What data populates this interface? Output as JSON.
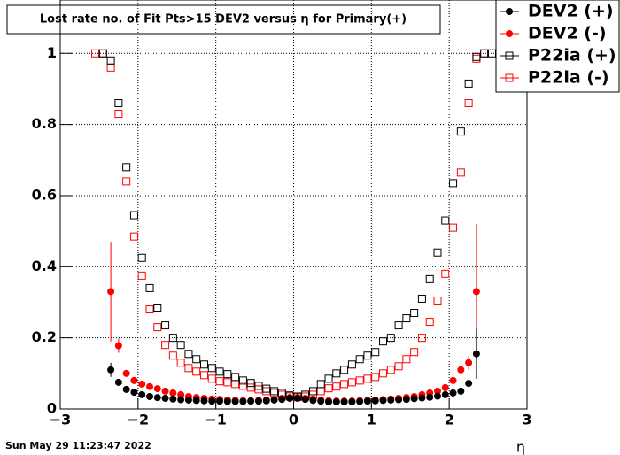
{
  "chart_data": {
    "type": "scatter",
    "title": "Lost rate no. of Fit Pts>15 DEV2 versus η for Primary(+)",
    "x_label": "η",
    "timestamp": "Sun May 29 11:23:47 2022",
    "xlim": [
      -3,
      3
    ],
    "ylim": [
      0,
      1.15
    ],
    "xticks": [
      {
        "value": -3,
        "label": "−3"
      },
      {
        "value": -2,
        "label": "−2"
      },
      {
        "value": -1,
        "label": "−1"
      },
      0,
      1,
      2,
      3
    ],
    "yticks": [
      0,
      0.2,
      0.4,
      0.6,
      0.8,
      1
    ],
    "grid": true,
    "legend": "top-right",
    "series": [
      {
        "name": "DEV2 (+)",
        "color": "#000000",
        "marker": "filled-circle",
        "x": [
          -2.35,
          -2.25,
          -2.15,
          -2.05,
          -1.95,
          -1.85,
          -1.75,
          -1.65,
          -1.55,
          -1.45,
          -1.35,
          -1.25,
          -1.15,
          -1.05,
          -0.95,
          -0.85,
          -0.75,
          -0.65,
          -0.55,
          -0.45,
          -0.35,
          -0.25,
          -0.15,
          -0.05,
          0.05,
          0.15,
          0.25,
          0.35,
          0.45,
          0.55,
          0.65,
          0.75,
          0.85,
          0.95,
          1.05,
          1.15,
          1.25,
          1.35,
          1.45,
          1.55,
          1.65,
          1.75,
          1.85,
          1.95,
          2.05,
          2.15,
          2.25,
          2.35
        ],
        "values": [
          0.11,
          0.075,
          0.055,
          0.047,
          0.04,
          0.035,
          0.032,
          0.03,
          0.028,
          0.026,
          0.025,
          0.024,
          0.023,
          0.022,
          0.022,
          0.021,
          0.021,
          0.021,
          0.022,
          0.022,
          0.023,
          0.025,
          0.027,
          0.03,
          0.03,
          0.027,
          0.024,
          0.022,
          0.02,
          0.02,
          0.02,
          0.02,
          0.021,
          0.022,
          0.023,
          0.024,
          0.025,
          0.026,
          0.027,
          0.029,
          0.031,
          0.033,
          0.036,
          0.04,
          0.045,
          0.05,
          0.072,
          0.155
        ],
        "errors": [
          0.02,
          0.008,
          0.005,
          0.004,
          0.003,
          0.003,
          0.003,
          0.003,
          0.003,
          0.003,
          0.003,
          0.003,
          0.003,
          0.003,
          0.003,
          0.003,
          0.003,
          0.003,
          0.003,
          0.003,
          0.003,
          0.003,
          0.003,
          0.003,
          0.003,
          0.003,
          0.003,
          0.003,
          0.003,
          0.003,
          0.003,
          0.003,
          0.003,
          0.003,
          0.003,
          0.003,
          0.003,
          0.003,
          0.003,
          0.003,
          0.003,
          0.003,
          0.003,
          0.003,
          0.004,
          0.005,
          0.008,
          0.07
        ]
      },
      {
        "name": "DEV2 (-)",
        "color": "#ff0000",
        "marker": "filled-circle",
        "x": [
          -2.35,
          -2.25,
          -2.15,
          -2.05,
          -1.95,
          -1.85,
          -1.75,
          -1.65,
          -1.55,
          -1.45,
          -1.35,
          -1.25,
          -1.15,
          -1.05,
          -0.95,
          -0.85,
          -0.75,
          -0.65,
          -0.55,
          -0.45,
          -0.35,
          -0.25,
          -0.15,
          -0.05,
          0.05,
          0.15,
          0.25,
          0.35,
          0.45,
          0.55,
          0.65,
          0.75,
          0.85,
          0.95,
          1.05,
          1.15,
          1.25,
          1.35,
          1.45,
          1.55,
          1.65,
          1.75,
          1.85,
          1.95,
          2.05,
          2.15,
          2.25,
          2.35
        ],
        "values": [
          0.33,
          0.178,
          0.1,
          0.08,
          0.07,
          0.063,
          0.057,
          0.05,
          0.045,
          0.04,
          0.035,
          0.032,
          0.03,
          0.028,
          0.027,
          0.025,
          0.024,
          0.023,
          0.023,
          0.024,
          0.025,
          0.027,
          0.03,
          0.032,
          0.032,
          0.03,
          0.028,
          0.025,
          0.023,
          0.022,
          0.022,
          0.022,
          0.023,
          0.024,
          0.025,
          0.026,
          0.028,
          0.03,
          0.032,
          0.035,
          0.04,
          0.045,
          0.05,
          0.06,
          0.08,
          0.11,
          0.13,
          0.33
        ],
        "errors": [
          0.14,
          0.02,
          0.008,
          0.005,
          0.004,
          0.003,
          0.003,
          0.003,
          0.003,
          0.003,
          0.003,
          0.003,
          0.003,
          0.003,
          0.003,
          0.003,
          0.003,
          0.003,
          0.003,
          0.003,
          0.003,
          0.003,
          0.003,
          0.003,
          0.003,
          0.003,
          0.003,
          0.003,
          0.003,
          0.003,
          0.003,
          0.003,
          0.003,
          0.003,
          0.003,
          0.003,
          0.003,
          0.003,
          0.003,
          0.003,
          0.003,
          0.003,
          0.004,
          0.005,
          0.006,
          0.01,
          0.02,
          0.19
        ]
      },
      {
        "name": "P22ia (+)",
        "color": "#000000",
        "marker": "open-square",
        "x": [
          -2.45,
          -2.35,
          -2.25,
          -2.15,
          -2.05,
          -1.95,
          -1.85,
          -1.75,
          -1.65,
          -1.55,
          -1.45,
          -1.35,
          -1.25,
          -1.15,
          -1.05,
          -0.95,
          -0.85,
          -0.75,
          -0.65,
          -0.55,
          -0.45,
          -0.35,
          -0.25,
          -0.15,
          -0.05,
          0.05,
          0.15,
          0.25,
          0.35,
          0.45,
          0.55,
          0.65,
          0.75,
          0.85,
          0.95,
          1.05,
          1.15,
          1.25,
          1.35,
          1.45,
          1.55,
          1.65,
          1.75,
          1.85,
          1.95,
          2.05,
          2.15,
          2.25,
          2.35,
          2.45,
          2.55
        ],
        "values": [
          1.0,
          0.98,
          0.86,
          0.68,
          0.545,
          0.425,
          0.34,
          0.285,
          0.235,
          0.2,
          0.18,
          0.155,
          0.14,
          0.125,
          0.115,
          0.105,
          0.098,
          0.09,
          0.08,
          0.073,
          0.065,
          0.057,
          0.05,
          0.045,
          0.038,
          0.035,
          0.04,
          0.05,
          0.07,
          0.085,
          0.1,
          0.11,
          0.125,
          0.14,
          0.15,
          0.16,
          0.19,
          0.2,
          0.235,
          0.255,
          0.27,
          0.31,
          0.365,
          0.44,
          0.53,
          0.635,
          0.78,
          0.915,
          0.99,
          1.0,
          1.0
        ]
      },
      {
        "name": "P22ia (-)",
        "color": "#ff0000",
        "marker": "open-square",
        "x": [
          -2.55,
          -2.45,
          -2.35,
          -2.25,
          -2.15,
          -2.05,
          -1.95,
          -1.85,
          -1.75,
          -1.65,
          -1.55,
          -1.45,
          -1.35,
          -1.25,
          -1.15,
          -1.05,
          -0.95,
          -0.85,
          -0.75,
          -0.65,
          -0.55,
          -0.45,
          -0.35,
          -0.25,
          -0.15,
          -0.05,
          0.05,
          0.15,
          0.25,
          0.35,
          0.45,
          0.55,
          0.65,
          0.75,
          0.85,
          0.95,
          1.05,
          1.15,
          1.25,
          1.35,
          1.45,
          1.55,
          1.65,
          1.75,
          1.85,
          1.95,
          2.05,
          2.15,
          2.25,
          2.35,
          2.45
        ],
        "values": [
          1.0,
          1.0,
          0.96,
          0.83,
          0.64,
          0.485,
          0.375,
          0.28,
          0.23,
          0.18,
          0.15,
          0.13,
          0.115,
          0.105,
          0.095,
          0.085,
          0.078,
          0.075,
          0.07,
          0.065,
          0.06,
          0.055,
          0.05,
          0.045,
          0.04,
          0.035,
          0.033,
          0.035,
          0.04,
          0.05,
          0.058,
          0.063,
          0.07,
          0.075,
          0.08,
          0.085,
          0.09,
          0.1,
          0.11,
          0.12,
          0.14,
          0.16,
          0.2,
          0.245,
          0.305,
          0.38,
          0.51,
          0.665,
          0.86,
          0.985,
          1.0
        ]
      }
    ]
  }
}
